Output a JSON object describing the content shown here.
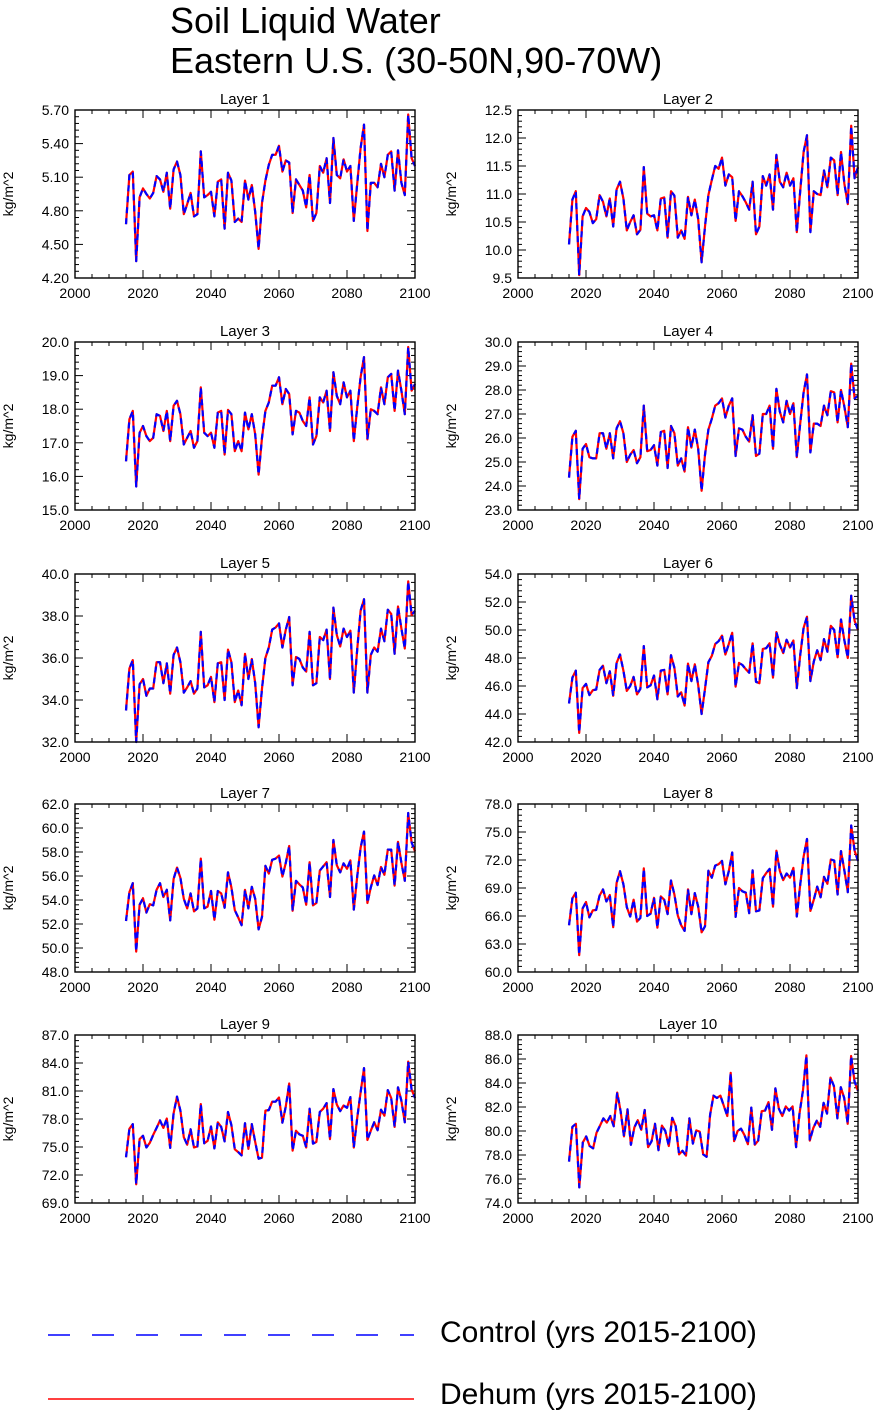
{
  "title": [
    "Soil Liquid Water",
    "Eastern U.S. (30-50N,90-70W)"
  ],
  "legend": [
    {
      "label": "Control (yrs 2015-2100)",
      "color": "#0000ff",
      "style": "dashed"
    },
    {
      "label": "Dehum (yrs 2015-2100)",
      "color": "#ff0000",
      "style": "solid"
    }
  ],
  "chart_data": [
    {
      "type": "line",
      "title": "Layer 1",
      "ylabel": "kg/m^2",
      "xlim": [
        2000,
        2100
      ],
      "xticks": [
        2000,
        2020,
        2040,
        2060,
        2080,
        2100
      ],
      "ylim": [
        4.2,
        5.7
      ],
      "yticks": [
        4.2,
        4.5,
        4.8,
        5.1,
        5.4,
        5.7
      ],
      "ytick_labels": [
        "4.20",
        "4.50",
        "4.80",
        "5.10",
        "5.40",
        "5.70"
      ],
      "x_start": 2015,
      "x_end": 2100,
      "values": [
        4.68,
        5.12,
        5.15,
        4.35,
        4.92,
        5.0,
        4.95,
        4.91,
        4.96,
        5.11,
        5.08,
        4.97,
        5.14,
        4.82,
        5.17,
        5.24,
        5.12,
        4.77,
        4.86,
        4.96,
        4.75,
        4.77,
        5.33,
        4.92,
        4.94,
        4.97,
        4.75,
        5.06,
        5.08,
        4.64,
        5.14,
        5.07,
        4.7,
        4.73,
        4.7,
        5.07,
        4.9,
        5.03,
        4.79,
        4.46,
        4.87,
        5.07,
        5.21,
        5.3,
        5.3,
        5.38,
        5.15,
        5.25,
        5.23,
        4.78,
        5.08,
        5.03,
        4.98,
        4.83,
        5.12,
        4.71,
        4.78,
        5.2,
        5.14,
        5.27,
        4.87,
        5.45,
        5.12,
        5.09,
        5.26,
        5.15,
        5.2,
        4.71,
        5.04,
        5.36,
        5.57,
        4.62,
        5.05,
        5.05,
        5.01,
        5.22,
        5.1,
        5.3,
        5.33,
        4.98,
        5.34,
        5.05,
        4.94,
        5.66,
        5.27,
        5.2
      ]
    },
    {
      "type": "line",
      "title": "Layer 2",
      "ylabel": "kg/m^2",
      "xlim": [
        2000,
        2100
      ],
      "xticks": [
        2000,
        2020,
        2040,
        2060,
        2080,
        2100
      ],
      "ylim": [
        9.5,
        12.5
      ],
      "yticks": [
        9.5,
        10.0,
        10.5,
        11.0,
        11.5,
        12.0,
        12.5
      ],
      "ytick_labels": [
        "9.5",
        "10.0",
        "10.5",
        "11.0",
        "11.5",
        "12.0",
        "12.5"
      ],
      "x_start": 2015,
      "x_end": 2100,
      "values": [
        10.1,
        10.9,
        11.05,
        9.55,
        10.6,
        10.75,
        10.68,
        10.48,
        10.55,
        10.98,
        10.86,
        10.6,
        10.92,
        10.42,
        11.08,
        11.22,
        10.92,
        10.35,
        10.5,
        10.62,
        10.28,
        10.36,
        11.48,
        10.65,
        10.6,
        10.62,
        10.35,
        10.92,
        10.94,
        10.22,
        11.05,
        10.97,
        10.22,
        10.35,
        10.2,
        10.95,
        10.62,
        10.9,
        10.55,
        9.78,
        10.42,
        10.98,
        11.25,
        11.5,
        11.45,
        11.65,
        11.15,
        11.35,
        11.3,
        10.52,
        11.05,
        10.96,
        10.85,
        10.72,
        11.22,
        10.28,
        10.42,
        11.32,
        11.15,
        11.35,
        10.72,
        11.7,
        11.22,
        11.12,
        11.38,
        11.15,
        11.28,
        10.32,
        11.05,
        11.75,
        12.05,
        10.32,
        11.05,
        11.0,
        10.98,
        11.42,
        11.12,
        11.65,
        11.6,
        10.98,
        11.75,
        11.18,
        10.82,
        12.22,
        11.28,
        11.48
      ]
    },
    {
      "type": "line",
      "title": "Layer 3",
      "ylabel": "kg/m^2",
      "xlim": [
        2000,
        2100
      ],
      "xticks": [
        2000,
        2020,
        2040,
        2060,
        2080,
        2100
      ],
      "ylim": [
        15.0,
        20.0
      ],
      "yticks": [
        15.0,
        16.0,
        17.0,
        18.0,
        19.0,
        20.0
      ],
      "ytick_labels": [
        "15.0",
        "16.0",
        "17.0",
        "18.0",
        "19.0",
        "20.0"
      ],
      "x_start": 2015,
      "x_end": 2100,
      "values": [
        16.45,
        17.7,
        17.95,
        15.7,
        17.3,
        17.5,
        17.2,
        17.05,
        17.15,
        17.85,
        17.8,
        17.35,
        17.95,
        17.05,
        18.1,
        18.25,
        17.85,
        16.95,
        17.15,
        17.35,
        16.85,
        17.05,
        18.65,
        17.3,
        17.2,
        17.3,
        16.85,
        17.9,
        17.95,
        16.65,
        17.98,
        17.85,
        16.75,
        17.05,
        16.75,
        17.9,
        17.4,
        17.85,
        17.25,
        16.05,
        17.15,
        17.95,
        18.2,
        18.7,
        18.7,
        18.95,
        18.15,
        18.6,
        18.45,
        17.25,
        17.95,
        17.9,
        17.65,
        17.5,
        18.35,
        16.95,
        17.2,
        18.35,
        18.2,
        18.55,
        17.35,
        19.1,
        18.4,
        18.15,
        18.8,
        18.35,
        18.55,
        17.05,
        18.05,
        18.95,
        19.55,
        17.1,
        18.0,
        17.95,
        17.85,
        18.65,
        18.15,
        18.95,
        19.05,
        17.95,
        19.15,
        18.55,
        17.85,
        19.85,
        18.55,
        18.75
      ]
    },
    {
      "type": "line",
      "title": "Layer 4",
      "ylabel": "kg/m^2",
      "xlim": [
        2000,
        2100
      ],
      "xticks": [
        2000,
        2020,
        2040,
        2060,
        2080,
        2100
      ],
      "ylim": [
        23.0,
        30.0
      ],
      "yticks": [
        23.0,
        24.0,
        25.0,
        26.0,
        27.0,
        28.0,
        29.0,
        30.0
      ],
      "ytick_labels": [
        "23.0",
        "24.0",
        "25.0",
        "26.0",
        "27.0",
        "28.0",
        "29.0",
        "30.0"
      ],
      "x_start": 2015,
      "x_end": 2100,
      "values": [
        24.35,
        26.05,
        26.3,
        23.45,
        25.55,
        25.75,
        25.2,
        25.15,
        25.15,
        26.2,
        26.2,
        25.55,
        26.2,
        25.15,
        26.4,
        26.7,
        26.2,
        25.0,
        25.3,
        25.5,
        24.95,
        25.2,
        27.35,
        25.45,
        25.5,
        25.7,
        24.85,
        26.25,
        26.3,
        24.75,
        26.5,
        26.2,
        24.85,
        25.15,
        24.6,
        26.45,
        25.6,
        26.35,
        25.55,
        23.8,
        25.3,
        26.35,
        26.8,
        27.35,
        27.45,
        27.65,
        26.85,
        27.35,
        27.65,
        25.25,
        26.4,
        26.35,
        26.05,
        25.85,
        26.95,
        25.25,
        25.35,
        27.0,
        27.0,
        27.35,
        25.55,
        28.05,
        27.1,
        26.65,
        27.55,
        27.0,
        27.45,
        25.2,
        26.6,
        27.9,
        28.65,
        25.4,
        26.6,
        26.6,
        26.5,
        27.35,
        26.95,
        27.95,
        27.9,
        26.65,
        28.0,
        27.3,
        26.45,
        29.1,
        27.65,
        27.75
      ]
    },
    {
      "type": "line",
      "title": "Layer 5",
      "ylabel": "kg/m^2",
      "xlim": [
        2000,
        2100
      ],
      "xticks": [
        2000,
        2020,
        2040,
        2060,
        2080,
        2100
      ],
      "ylim": [
        32.0,
        40.0
      ],
      "yticks": [
        32.0,
        34.0,
        36.0,
        38.0,
        40.0
      ],
      "ytick_labels": [
        "32.0",
        "34.0",
        "36.0",
        "38.0",
        "40.0"
      ],
      "x_start": 2015,
      "x_end": 2100,
      "values": [
        33.5,
        35.5,
        35.9,
        32.0,
        34.75,
        35.0,
        34.2,
        34.55,
        34.55,
        35.8,
        35.8,
        34.8,
        35.75,
        34.3,
        36.15,
        36.5,
        35.8,
        34.35,
        34.6,
        34.9,
        34.3,
        34.55,
        37.25,
        34.6,
        34.7,
        35.1,
        33.9,
        35.75,
        35.8,
        34.0,
        36.4,
        35.8,
        33.9,
        34.45,
        33.75,
        36.2,
        35.0,
        35.95,
        34.8,
        32.7,
        34.55,
        36.0,
        36.5,
        37.35,
        37.45,
        37.65,
        36.5,
        37.35,
        37.95,
        34.7,
        36.05,
        35.95,
        35.55,
        35.35,
        37.25,
        34.7,
        34.8,
        37.0,
        36.85,
        37.35,
        35.0,
        38.4,
        37.1,
        36.55,
        37.4,
        37.0,
        37.3,
        34.35,
        36.4,
        38.25,
        38.8,
        34.35,
        36.15,
        36.5,
        36.3,
        37.4,
        36.8,
        38.3,
        38.1,
        36.2,
        38.45,
        37.4,
        36.45,
        39.65,
        38.05,
        38.25
      ]
    },
    {
      "type": "line",
      "title": "Layer 6",
      "ylabel": "kg/m^2",
      "xlim": [
        2000,
        2100
      ],
      "xticks": [
        2000,
        2020,
        2040,
        2060,
        2080,
        2100
      ],
      "ylim": [
        42.0,
        54.0
      ],
      "yticks": [
        42.0,
        44.0,
        46.0,
        48.0,
        50.0,
        52.0,
        54.0
      ],
      "ytick_labels": [
        "42.0",
        "44.0",
        "46.0",
        "48.0",
        "50.0",
        "52.0",
        "54.0"
      ],
      "x_start": 2015,
      "x_end": 2100,
      "values": [
        44.75,
        46.6,
        47.1,
        42.65,
        45.85,
        46.15,
        45.35,
        45.7,
        45.75,
        47.15,
        47.45,
        46.2,
        47.05,
        45.3,
        47.65,
        48.25,
        47.1,
        45.65,
        46.0,
        46.65,
        45.4,
        45.8,
        48.85,
        45.9,
        46.05,
        46.75,
        45.05,
        47.1,
        47.15,
        45.4,
        48.2,
        47.3,
        45.25,
        45.55,
        44.6,
        47.6,
        46.35,
        47.55,
        46.05,
        44.0,
        45.8,
        47.7,
        48.15,
        49.0,
        49.2,
        49.6,
        48.25,
        49.0,
        49.8,
        45.95,
        47.65,
        47.5,
        47.2,
        46.95,
        49.05,
        46.3,
        46.2,
        48.65,
        48.7,
        49.05,
        46.6,
        49.85,
        48.95,
        48.35,
        49.3,
        48.75,
        49.25,
        45.85,
        48.2,
        50.15,
        50.95,
        46.35,
        47.75,
        48.55,
        47.85,
        49.35,
        48.45,
        50.3,
        50.0,
        48.05,
        50.75,
        49.25,
        48.0,
        52.45,
        50.65,
        50.0
      ]
    },
    {
      "type": "line",
      "title": "Layer 7",
      "ylabel": "kg/m^2",
      "xlim": [
        2000,
        2100
      ],
      "xticks": [
        2000,
        2020,
        2040,
        2060,
        2080,
        2100
      ],
      "ylim": [
        48.0,
        62.0
      ],
      "yticks": [
        48.0,
        50.0,
        52.0,
        54.0,
        56.0,
        58.0,
        60.0,
        62.0
      ],
      "ytick_labels": [
        "48.0",
        "50.0",
        "52.0",
        "54.0",
        "56.0",
        "58.0",
        "60.0",
        "62.0"
      ],
      "x_start": 2015,
      "x_end": 2100,
      "values": [
        52.25,
        54.65,
        55.4,
        49.7,
        53.6,
        54.15,
        52.95,
        53.65,
        53.55,
        54.85,
        55.4,
        54.25,
        54.85,
        52.3,
        55.75,
        56.7,
        55.85,
        54.1,
        53.3,
        54.55,
        53.05,
        53.3,
        57.45,
        53.3,
        53.45,
        54.75,
        52.35,
        54.75,
        54.55,
        53.35,
        56.3,
        55.05,
        53.15,
        52.55,
        51.9,
        54.85,
        53.3,
        55.1,
        54.1,
        51.55,
        52.6,
        56.85,
        56.2,
        57.35,
        57.45,
        57.7,
        55.95,
        57.1,
        58.5,
        53.1,
        55.6,
        55.3,
        55.05,
        53.6,
        57.15,
        53.55,
        53.75,
        56.45,
        56.8,
        57.15,
        54.25,
        59.0,
        56.9,
        56.3,
        57.05,
        56.6,
        57.3,
        53.2,
        55.95,
        58.35,
        59.7,
        53.75,
        55.05,
        56.05,
        55.25,
        56.75,
        56.1,
        58.2,
        58.2,
        55.2,
        58.85,
        57.1,
        55.6,
        61.25,
        58.8,
        58.05
      ]
    },
    {
      "type": "line",
      "title": "Layer 8",
      "ylabel": "kg/m^2",
      "xlim": [
        2000,
        2100
      ],
      "xticks": [
        2000,
        2020,
        2040,
        2060,
        2080,
        2100
      ],
      "ylim": [
        60.0,
        78.0
      ],
      "yticks": [
        60.0,
        63.0,
        66.0,
        69.0,
        72.0,
        75.0,
        78.0
      ],
      "ytick_labels": [
        "60.0",
        "63.0",
        "66.0",
        "69.0",
        "72.0",
        "75.0",
        "78.0"
      ],
      "x_start": 2015,
      "x_end": 2100,
      "values": [
        65.0,
        67.9,
        68.5,
        61.8,
        66.8,
        67.5,
        65.85,
        66.6,
        66.65,
        68.2,
        68.85,
        67.55,
        68.25,
        64.8,
        69.55,
        70.8,
        69.4,
        66.95,
        65.95,
        67.75,
        65.4,
        65.8,
        71.1,
        66.0,
        66.25,
        67.95,
        64.75,
        68.1,
        67.75,
        66.2,
        69.8,
        68.3,
        66.05,
        65.0,
        64.4,
        68.85,
        66.2,
        68.45,
        67.0,
        64.25,
        64.9,
        70.85,
        70.1,
        71.4,
        71.55,
        71.9,
        69.4,
        70.8,
        72.8,
        65.9,
        69.0,
        68.65,
        68.5,
        66.3,
        70.9,
        66.5,
        66.6,
        70.05,
        70.6,
        71.05,
        67.0,
        73.0,
        70.85,
        69.85,
        70.55,
        70.1,
        71.15,
        65.95,
        69.35,
        72.35,
        74.25,
        66.55,
        67.75,
        69.15,
        68.0,
        70.2,
        69.45,
        72.05,
        71.95,
        68.3,
        72.95,
        70.85,
        68.55,
        75.7,
        73.0,
        71.9
      ]
    },
    {
      "type": "line",
      "title": "Layer 9",
      "ylabel": "kg/m^2",
      "xlim": [
        2000,
        2100
      ],
      "xticks": [
        2000,
        2020,
        2040,
        2060,
        2080,
        2100
      ],
      "ylim": [
        69.0,
        87.0
      ],
      "yticks": [
        69.0,
        72.0,
        75.0,
        78.0,
        81.0,
        84.0,
        87.0
      ],
      "ytick_labels": [
        "69.0",
        "72.0",
        "75.0",
        "78.0",
        "81.0",
        "84.0",
        "87.0"
      ],
      "x_start": 2015,
      "x_end": 2100,
      "values": [
        73.9,
        76.95,
        77.45,
        71.0,
        75.85,
        76.2,
        74.95,
        75.45,
        76.3,
        77.05,
        77.85,
        77.05,
        78.05,
        74.9,
        78.6,
        80.4,
        78.9,
        76.05,
        75.25,
        76.9,
        74.95,
        75.05,
        79.6,
        75.4,
        75.65,
        77.2,
        74.85,
        77.65,
        77.15,
        75.6,
        78.75,
        77.35,
        74.75,
        74.45,
        74.1,
        77.55,
        74.8,
        77.45,
        75.55,
        73.75,
        73.85,
        78.9,
        78.95,
        79.85,
        79.85,
        80.3,
        77.6,
        79.35,
        81.8,
        74.6,
        76.75,
        76.35,
        76.2,
        74.95,
        79.1,
        75.35,
        75.55,
        78.75,
        79.1,
        79.7,
        75.85,
        81.2,
        79.55,
        78.85,
        79.45,
        79.2,
        80.35,
        74.95,
        78.1,
        80.85,
        83.45,
        75.75,
        76.75,
        77.65,
        76.8,
        79.0,
        78.35,
        81.1,
        80.25,
        77.15,
        81.4,
        79.95,
        77.65,
        84.15,
        81.15,
        80.25
      ]
    },
    {
      "type": "line",
      "title": "Layer 10",
      "ylabel": "kg/m^2",
      "xlim": [
        2000,
        2100
      ],
      "xticks": [
        2000,
        2020,
        2040,
        2060,
        2080,
        2100
      ],
      "ylim": [
        74.0,
        88.0
      ],
      "yticks": [
        74.0,
        76.0,
        78.0,
        80.0,
        82.0,
        84.0,
        86.0,
        88.0
      ],
      "ytick_labels": [
        "74.0",
        "76.0",
        "78.0",
        "80.0",
        "82.0",
        "84.0",
        "86.0",
        "88.0"
      ],
      "x_start": 2015,
      "x_end": 2100,
      "values": [
        77.45,
        80.35,
        80.6,
        75.3,
        79.05,
        79.55,
        78.75,
        78.55,
        79.85,
        80.45,
        81.05,
        80.7,
        81.25,
        80.4,
        83.2,
        81.65,
        79.55,
        81.8,
        78.85,
        80.3,
        80.9,
        80.1,
        81.75,
        78.65,
        79.15,
        80.6,
        78.4,
        80.45,
        80.0,
        78.75,
        81.1,
        80.4,
        78.05,
        78.35,
        77.95,
        81.05,
        78.95,
        80.05,
        79.95,
        78.05,
        77.85,
        81.35,
        82.95,
        82.75,
        82.95,
        82.1,
        81.25,
        84.85,
        79.15,
        80.0,
        80.2,
        79.65,
        78.9,
        81.95,
        78.85,
        79.2,
        81.65,
        81.7,
        82.4,
        80.1,
        83.55,
        81.85,
        81.25,
        82.05,
        81.7,
        82.05,
        78.65,
        81.45,
        83.4,
        86.3,
        79.2,
        80.25,
        80.85,
        80.35,
        82.35,
        81.45,
        84.45,
        83.75,
        81.05,
        83.65,
        82.75,
        80.6,
        86.25,
        84.1,
        83.35
      ]
    }
  ]
}
